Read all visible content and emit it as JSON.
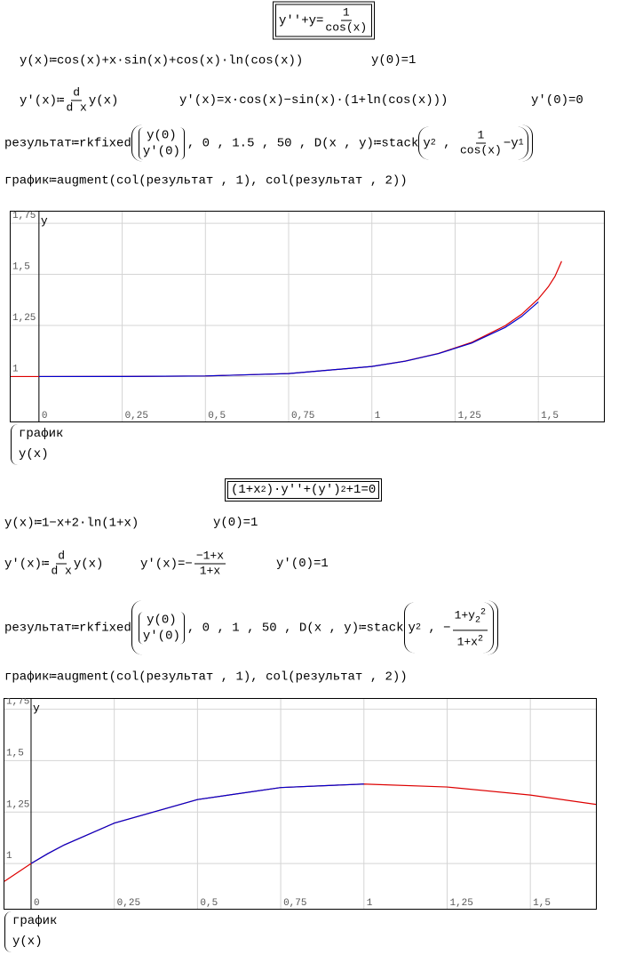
{
  "section_1": {
    "ode": {
      "lhs": "y''+y=",
      "num": "1",
      "den": "cos(x)"
    },
    "solution": "y(x)≔cos(x)+x·sin(x)+cos(x)·ln(cos(x))",
    "y0": "y(0)=1",
    "dy_def": {
      "lhs": "y'(x)≔",
      "num": "d",
      "den": "d x",
      "rhs": "y(x)"
    },
    "dy": "y'(x)=x·cos(x)−sin(x)·(1+ln(cos(x)))",
    "dy0": "y'(0)=0",
    "rk": {
      "lhs": "результат≔rkfixed",
      "vector": [
        "y(0)",
        "y'(0)"
      ],
      "args": ", 0 , 1.5 , 50 , D(x , y)≔stack",
      "y2": "y",
      "y2_sub": "2",
      "sep": " , ",
      "num": "1",
      "den": "cos(x)",
      "tail": "−y",
      "tail_sub": "1"
    },
    "graph": "график≔augment(col(результат , 1), col(результат , 2))"
  },
  "section_2": {
    "ode": {
      "a": "(1+x",
      "a_sup": "2",
      "b": ")·y''+(y')",
      "b_sup": "2",
      "c": "+1=0"
    },
    "solution": "y(x)≔1−x+2·ln(1+x)",
    "y0": "y(0)=1",
    "dy_def": {
      "lhs": "y'(x)≔",
      "num": "d",
      "den": "d x",
      "rhs": "y(x)"
    },
    "dy": {
      "lhs": "y'(x)=−",
      "num": "−1+x",
      "den": "1+x"
    },
    "dy0": "y'(0)=1",
    "rk": {
      "lhs": "результат≔rkfixed",
      "vector": [
        "y(0)",
        "y'(0)"
      ],
      "args": ", 0 , 1 , 50 , D(x , y)≔stack",
      "y2": "y",
      "y2_sub": "2",
      "sep": " , −",
      "num": "1+y",
      "num_sub": "2",
      "num_sup": "2",
      "den": "1+x",
      "den_sup": "2"
    },
    "graph": "график≔augment(col(результат , 1), col(результат , 2))"
  },
  "chart_data": [
    {
      "type": "line",
      "ylabel": "y",
      "grid": true,
      "xlim": [
        -0.085,
        1.697
      ],
      "ylim": [
        0.78,
        1.807
      ],
      "xticks": [
        0,
        {
          "value": 0.25,
          "label": "0,25"
        },
        {
          "value": 0.5,
          "label": "0,5"
        },
        {
          "value": 0.75,
          "label": "0,75"
        },
        1,
        {
          "value": 1.25,
          "label": "1,25"
        },
        {
          "value": 1.5,
          "label": "1,5"
        }
      ],
      "yticks": [
        1,
        {
          "value": 1.25,
          "label": "1,25"
        },
        {
          "value": 1.5,
          "label": "1,5"
        },
        {
          "value": 1.75,
          "label": "1,75"
        }
      ],
      "series": [
        {
          "name": "график",
          "color": "#0000cc",
          "x": [
            0,
            0.25,
            0.5,
            0.75,
            1,
            1.1,
            1.2,
            1.3,
            1.4,
            1.45,
            1.5
          ],
          "values": [
            1,
            1.0002,
            1.0027,
            1.0143,
            1.0492,
            1.075,
            1.112,
            1.164,
            1.24,
            1.294,
            1.365
          ]
        },
        {
          "name": "y(x)",
          "color": "#dd0000",
          "x": [
            -0.085,
            0,
            0.25,
            0.5,
            0.75,
            1,
            1.1,
            1.2,
            1.3,
            1.4,
            1.45,
            1.5,
            1.53,
            1.55,
            1.57
          ],
          "values": [
            1,
            1,
            1.0002,
            1.0027,
            1.0143,
            1.0492,
            1.0753,
            1.113,
            1.1674,
            1.2484,
            1.3049,
            1.3801,
            1.439,
            1.49,
            1.5643
          ]
        }
      ]
    },
    {
      "type": "line",
      "ylabel": "y",
      "grid": true,
      "xlim": [
        -0.08,
        1.697
      ],
      "ylim": [
        0.78,
        1.8
      ],
      "xticks": [
        0,
        {
          "value": 0.25,
          "label": "0,25"
        },
        {
          "value": 0.5,
          "label": "0,5"
        },
        {
          "value": 0.75,
          "label": "0,75"
        },
        1,
        {
          "value": 1.25,
          "label": "1,25"
        },
        {
          "value": 1.5,
          "label": "1,5"
        }
      ],
      "yticks": [
        1,
        {
          "value": 1.25,
          "label": "1,25"
        },
        {
          "value": 1.5,
          "label": "1,5"
        },
        {
          "value": 1.75,
          "label": "1,75"
        }
      ],
      "series": [
        {
          "name": "график",
          "color": "#0000cc",
          "x": [
            0,
            0.05,
            0.1,
            0.25,
            0.5,
            0.75,
            1
          ],
          "values": [
            1,
            1.0476,
            1.0906,
            1.1963,
            1.3109,
            1.3692,
            1.3863
          ]
        },
        {
          "name": "y(x)",
          "color": "#dd0000",
          "x": [
            -0.08,
            0,
            0.05,
            0.1,
            0.25,
            0.5,
            0.75,
            1,
            1.25,
            1.5,
            1.697
          ],
          "values": [
            0.9132,
            1,
            1.0476,
            1.0906,
            1.1963,
            1.3109,
            1.3692,
            1.3863,
            1.3719,
            1.3326,
            1.2873
          ]
        }
      ]
    }
  ]
}
